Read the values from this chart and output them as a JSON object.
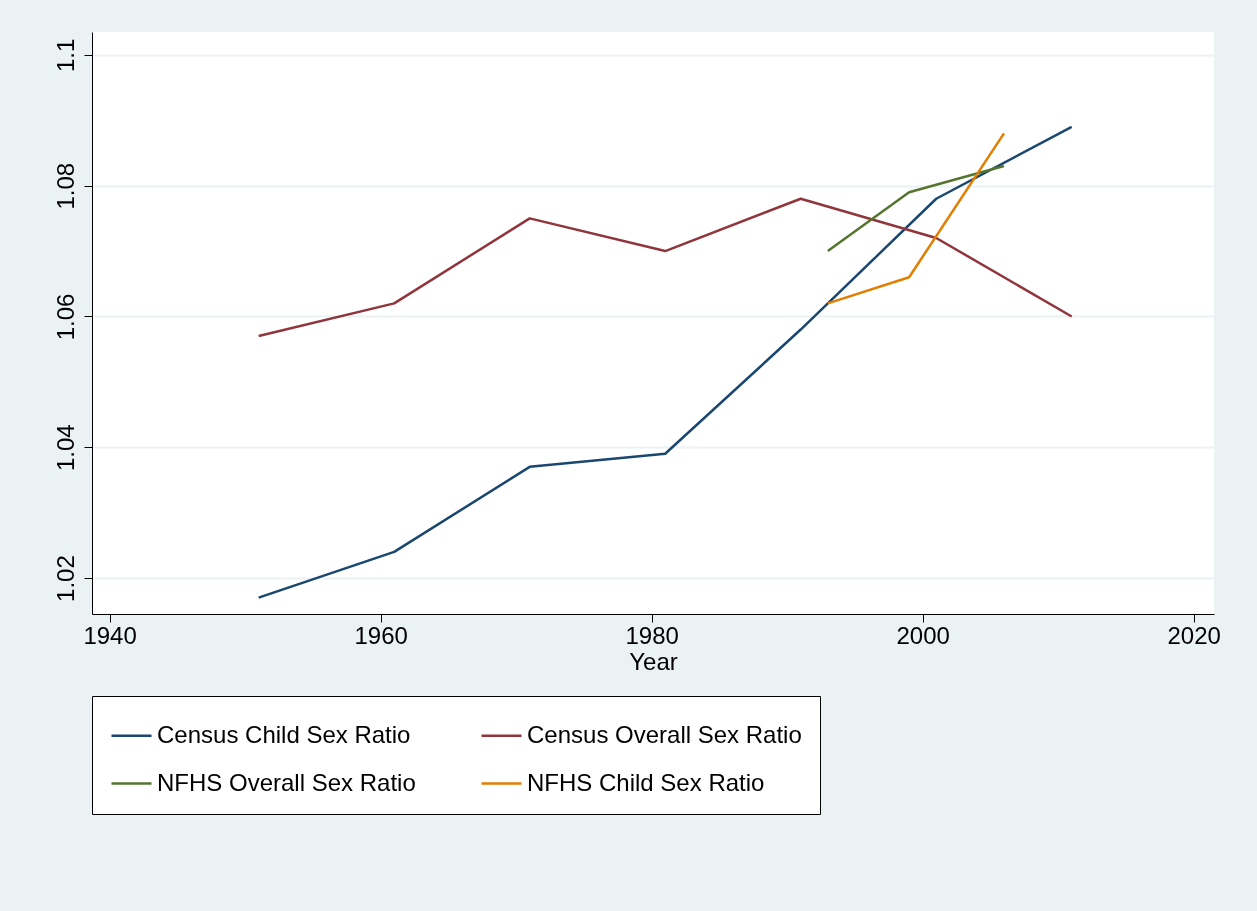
{
  "chart_data": {
    "type": "line",
    "xlabel": "Year",
    "xlim": [
      1938.7,
      2021.5
    ],
    "xticks": [
      1940,
      1960,
      1980,
      2000,
      2020
    ],
    "ylim": [
      1.0145,
      1.1035
    ],
    "yticks": [
      1.02,
      1.04,
      1.06,
      1.08,
      1.1
    ],
    "grid": "y",
    "legend": "bottom",
    "series": [
      {
        "name": "Census Child Sex Ratio",
        "color": "#1a476f",
        "x": [
          1951,
          1961,
          1971,
          1981,
          1991,
          2001,
          2011
        ],
        "values": [
          1.017,
          1.024,
          1.037,
          1.039,
          1.058,
          1.078,
          1.089
        ]
      },
      {
        "name": "Census Overall Sex Ratio",
        "color": "#90353b",
        "x": [
          1951,
          1961,
          1971,
          1981,
          1991,
          2001,
          2011
        ],
        "values": [
          1.057,
          1.062,
          1.075,
          1.07,
          1.078,
          1.072,
          1.06
        ]
      },
      {
        "name": "NFHS Overall Sex Ratio",
        "color": "#55752f",
        "x": [
          1993,
          1999,
          2006
        ],
        "values": [
          1.07,
          1.079,
          1.083
        ]
      },
      {
        "name": "NFHS Child Sex Ratio",
        "color": "#e37e00",
        "x": [
          1993,
          1999,
          2006
        ],
        "values": [
          1.062,
          1.066,
          1.088
        ]
      }
    ]
  }
}
